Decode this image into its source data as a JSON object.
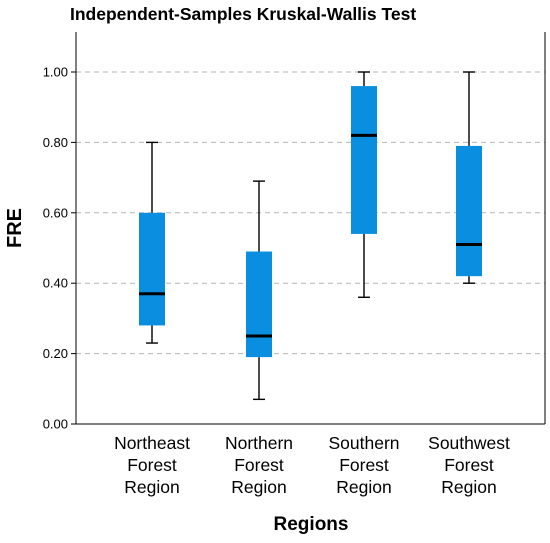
{
  "chart_data": {
    "type": "boxplot",
    "title": "Independent-Samples Kruskal-Wallis Test",
    "xlabel": "Regions",
    "ylabel": "FRE",
    "ylim": [
      0,
      1.12
    ],
    "yticks": [
      "0.00",
      "0.20",
      "0.40",
      "0.60",
      "0.80",
      "1.00"
    ],
    "box_color": "#0a8fe0",
    "grid": "horizontal dashed",
    "categories": [
      [
        "Northeast",
        "Forest",
        "Region"
      ],
      [
        "Northern",
        "Forest",
        "Region"
      ],
      [
        "Southern",
        "Forest",
        "Region"
      ],
      [
        "Southwest",
        "Forest",
        "Region"
      ]
    ],
    "boxes": [
      {
        "min": 0.23,
        "q1": 0.28,
        "median": 0.37,
        "q3": 0.6,
        "max": 0.8
      },
      {
        "min": 0.07,
        "q1": 0.19,
        "median": 0.25,
        "q3": 0.49,
        "max": 0.69
      },
      {
        "min": 0.36,
        "q1": 0.54,
        "median": 0.82,
        "q3": 0.96,
        "max": 1.0
      },
      {
        "min": 0.4,
        "q1": 0.42,
        "median": 0.51,
        "q3": 0.79,
        "max": 1.0
      }
    ]
  }
}
